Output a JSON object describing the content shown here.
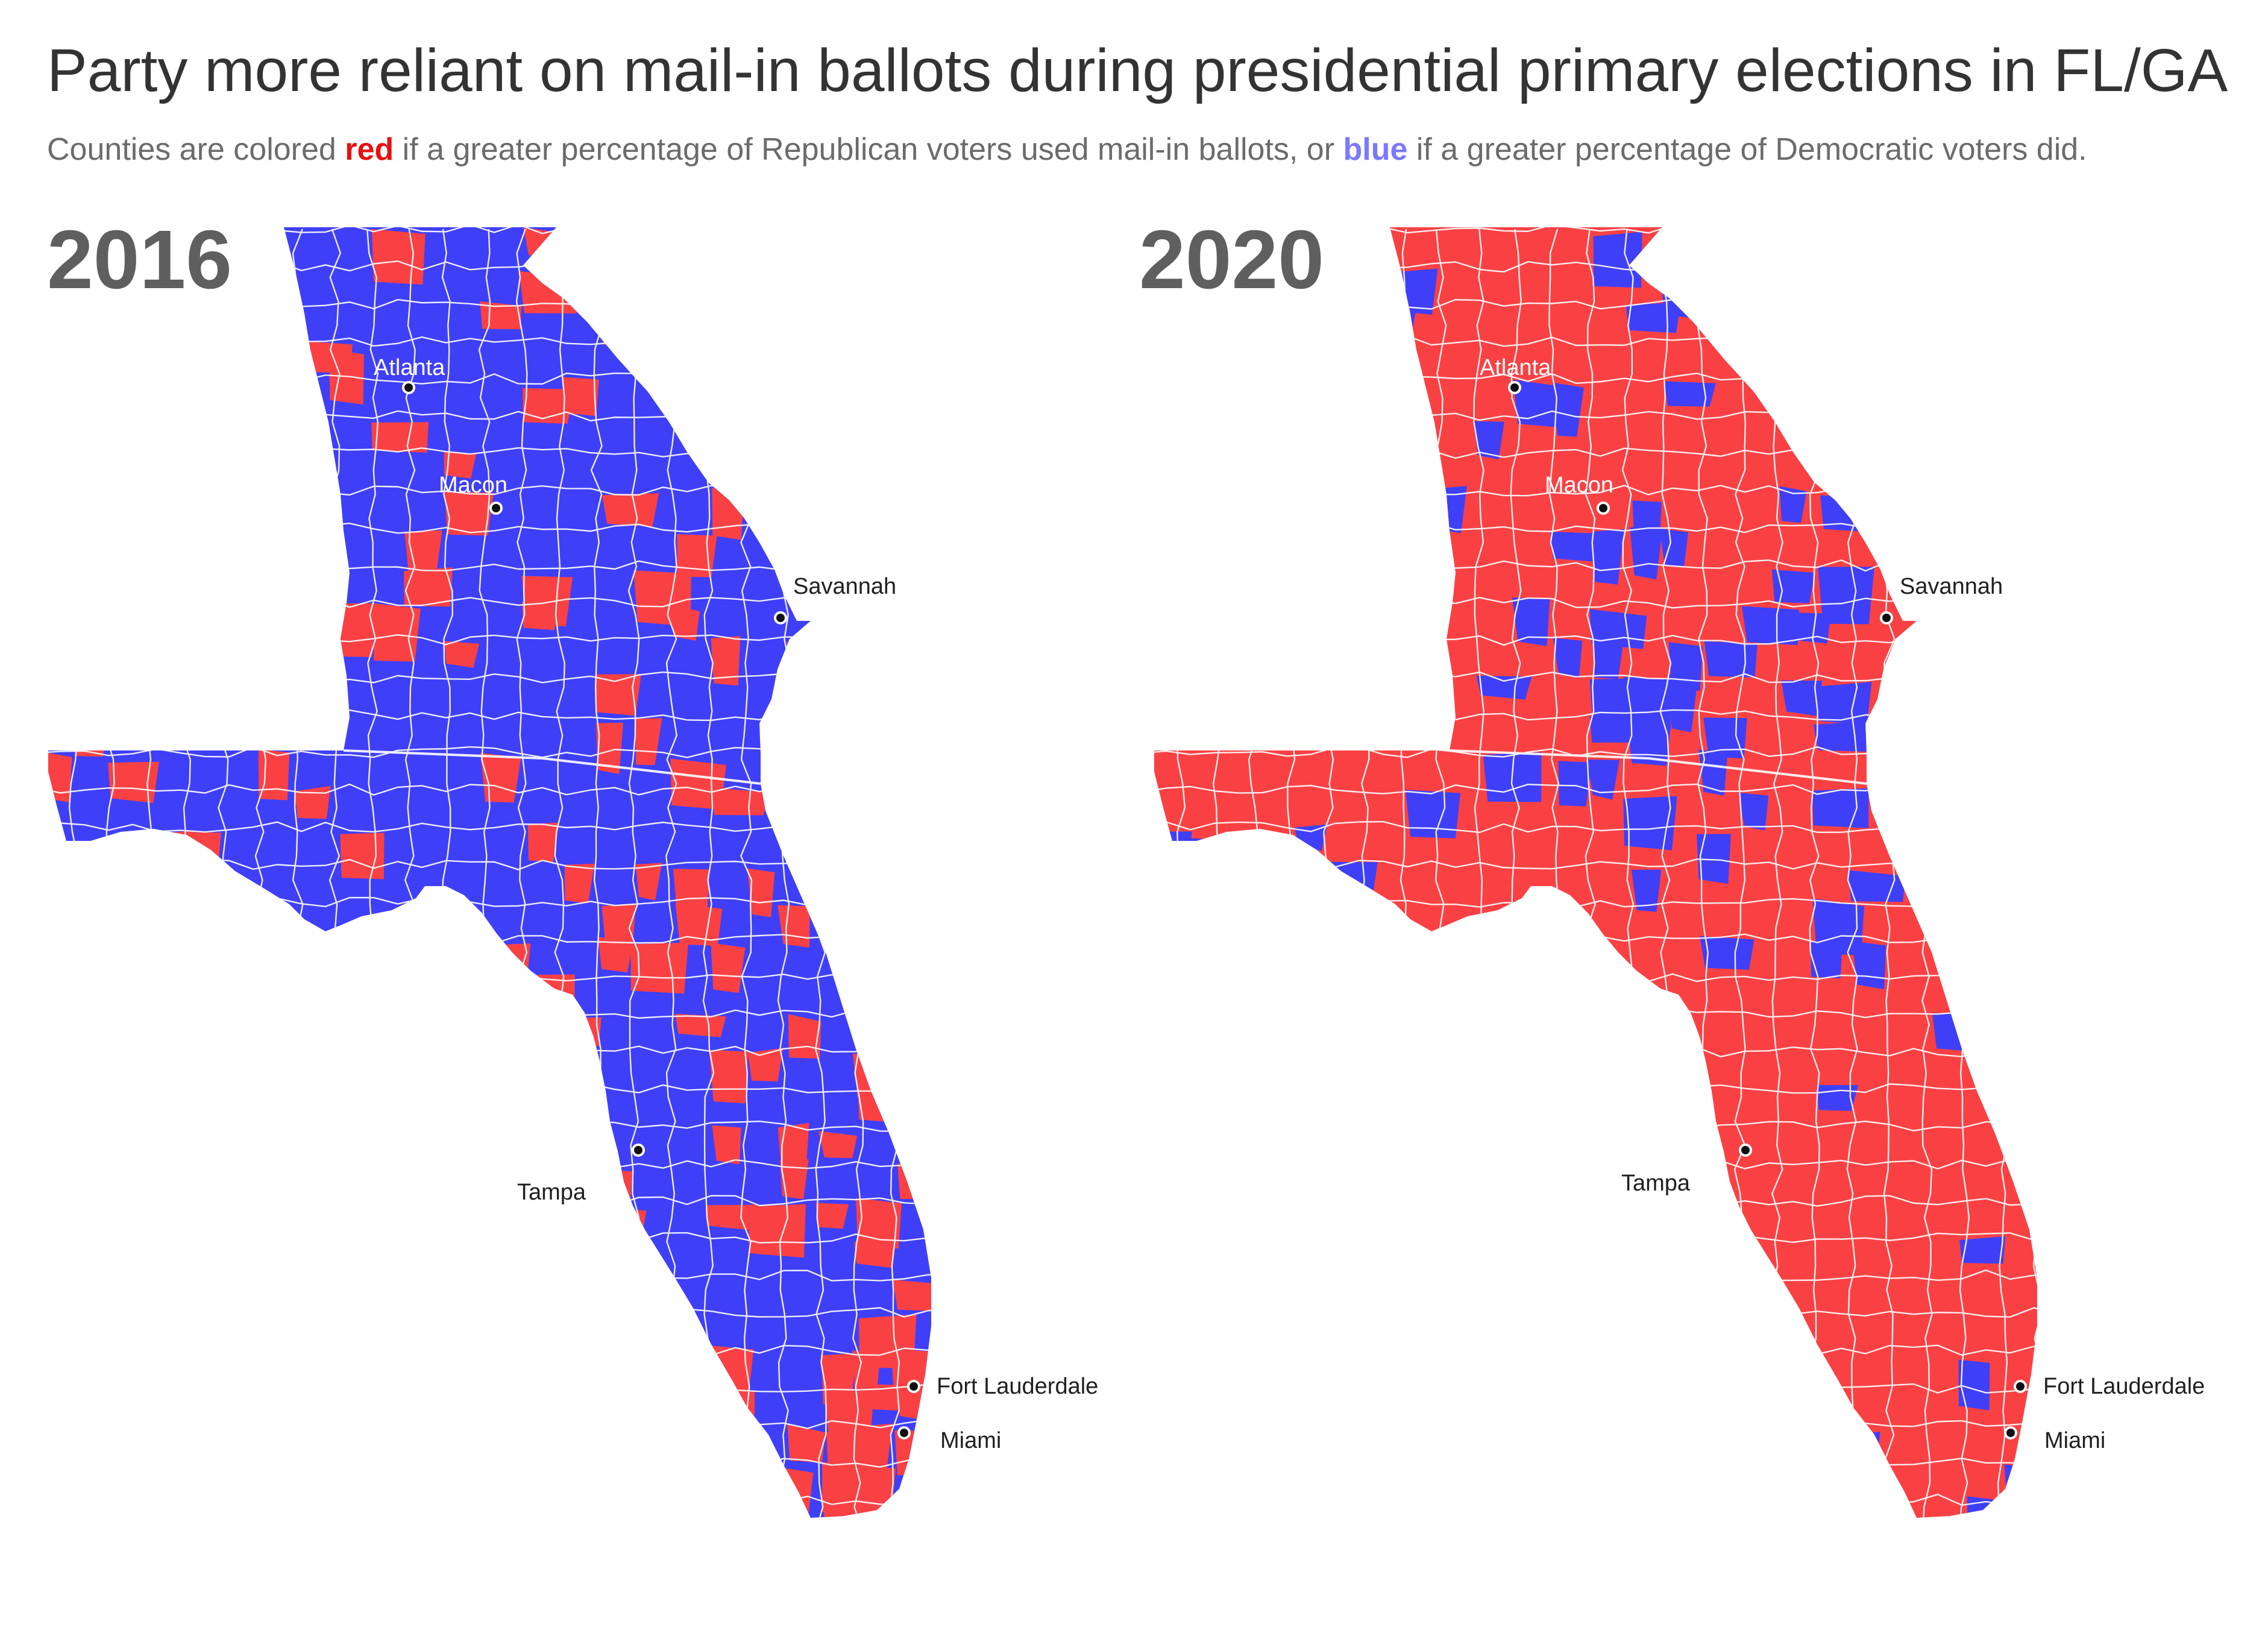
{
  "title": "Party more reliant on mail-in ballots during presidential primary elections in FL/GA",
  "subtitle": {
    "before": "Counties are colored ",
    "red_word": "red",
    "middle": " if a greater percentage of Republican voters used mail-in ballots, or ",
    "blue_word": "blue",
    "after": " if a greater percentage of Democratic voters did."
  },
  "colors": {
    "republican": "#f94144",
    "democratic": "#3f3ff8",
    "county_border": "#ffffff",
    "text_dark": "#333333",
    "year_label": "#5f5f5f",
    "subtitle_red": "#e8100f",
    "subtitle_blue": "#7b79ff"
  },
  "maps": [
    {
      "year": "2016",
      "base_party": "democratic",
      "cities": {
        "atlanta": "Atlanta",
        "macon": "Macon",
        "savannah": "Savannah",
        "tampa": "Tampa",
        "fort_lauderdale": "Fort Lauderdale",
        "miami": "Miami"
      }
    },
    {
      "year": "2020",
      "base_party": "republican",
      "cities": {
        "atlanta": "Atlanta",
        "macon": "Macon",
        "savannah": "Savannah",
        "tampa": "Tampa",
        "fort_lauderdale": "Fort Lauderdale",
        "miami": "Miami"
      }
    }
  ]
}
